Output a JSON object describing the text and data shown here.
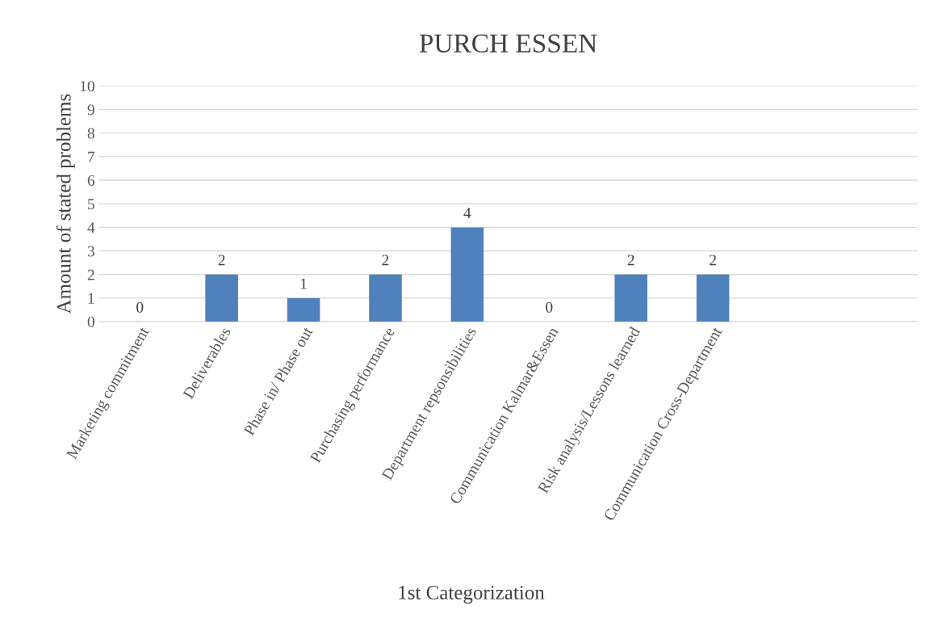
{
  "chart_data": {
    "type": "bar",
    "title": "PURCH ESSEN",
    "xlabel": "1st Categorization",
    "ylabel": "Amount of stated problems",
    "categories": [
      "Marketing commitment",
      "Deliverables",
      "Phase in/ Phase out",
      "Purchasing performance",
      "Department repsonsibilities",
      "Communication Kalmar&Essen",
      "Risk analysis/Lessons learned",
      "Communication Cross-Department",
      null,
      null
    ],
    "values": [
      0,
      2,
      1,
      2,
      4,
      0,
      2,
      2,
      null,
      null
    ],
    "color": "#4f81bd",
    "ylim": [
      0,
      10
    ],
    "yticks": [
      0,
      1,
      2,
      3,
      4,
      5,
      6,
      7,
      8,
      9,
      10
    ],
    "grid": "y",
    "data_labels": true
  }
}
